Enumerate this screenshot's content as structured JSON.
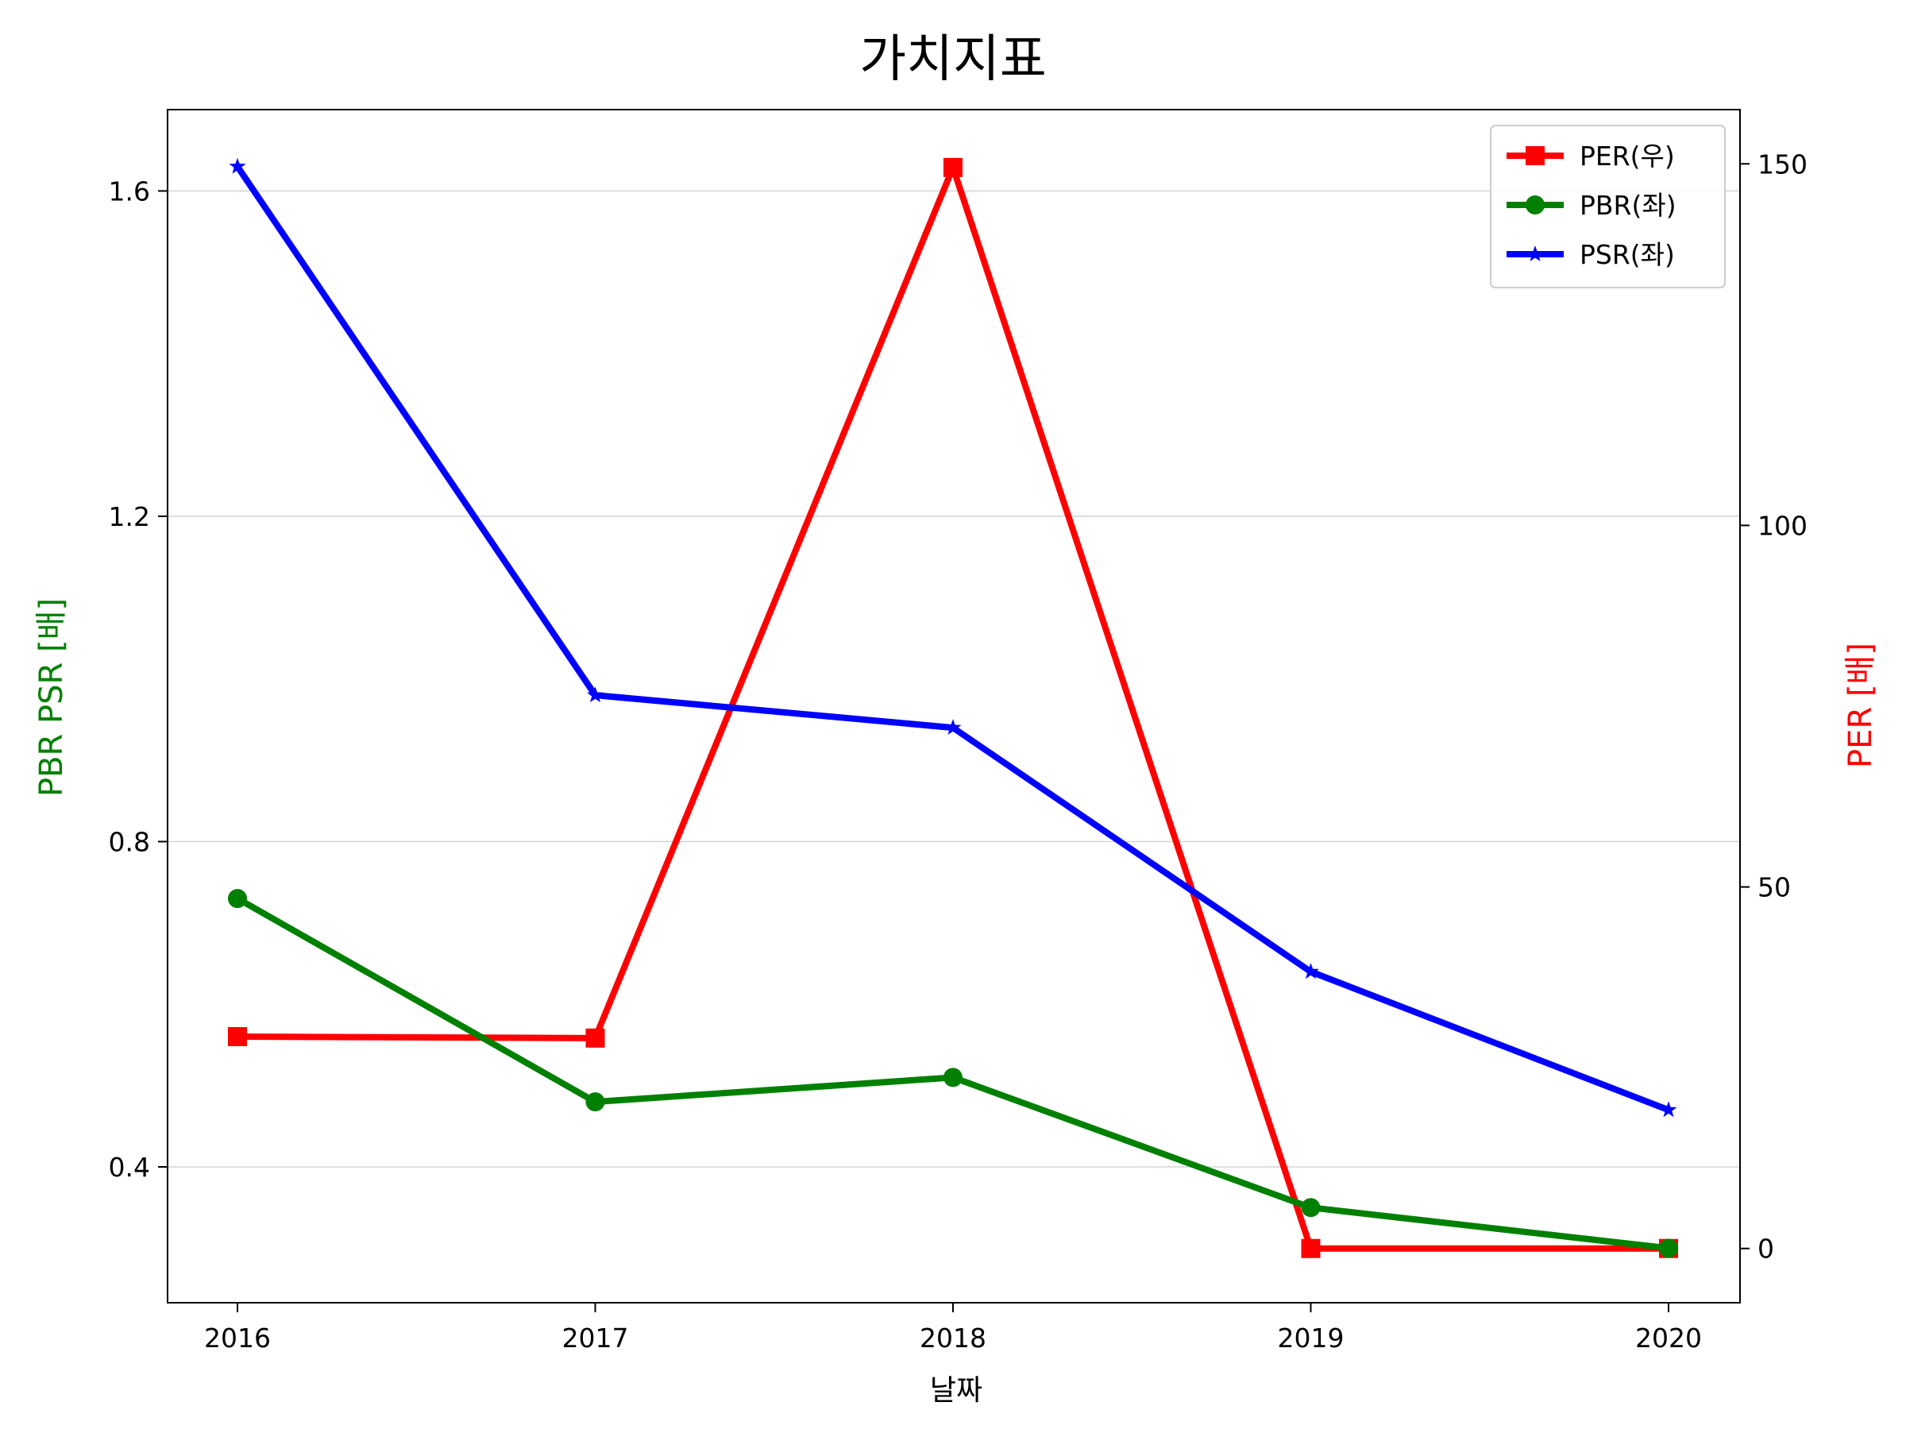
{
  "chart_data": {
    "type": "line",
    "title": "가치지표",
    "xlabel": "날짜",
    "ylabel_left": "PBR PSR [배]",
    "ylabel_right": "PER [배]",
    "categories": [
      "2016",
      "2017",
      "2018",
      "2019",
      "2020"
    ],
    "left_axis": {
      "ylim": [
        0.233,
        1.7
      ],
      "ticks": [
        0.4,
        0.8,
        1.2,
        1.6
      ],
      "tick_labels": [
        "0.4",
        "0.8",
        "1.2",
        "1.6"
      ]
    },
    "right_axis": {
      "ylim": [
        -7.5,
        157.5
      ],
      "ticks": [
        0,
        50,
        100,
        150
      ],
      "tick_labels": [
        "0",
        "50",
        "100",
        "150"
      ]
    },
    "grid": true,
    "legend_position": "top-right",
    "series": [
      {
        "name": "PER(우)",
        "axis": "right",
        "marker": "square",
        "color": "#ff0000",
        "values": [
          29.3,
          29.1,
          149.5,
          0.0,
          0.0
        ]
      },
      {
        "name": "PBR(좌)",
        "axis": "left",
        "marker": "circle",
        "color": "#008000",
        "values": [
          0.73,
          0.48,
          0.51,
          0.35,
          0.3
        ]
      },
      {
        "name": "PSR(좌)",
        "axis": "left",
        "marker": "star",
        "color": "#0000ff",
        "values": [
          1.63,
          0.98,
          0.94,
          0.64,
          0.47
        ]
      }
    ],
    "colors": {
      "left_label": "#008000",
      "right_label": "#ff0000",
      "grid": "#d3d3d3"
    }
  }
}
